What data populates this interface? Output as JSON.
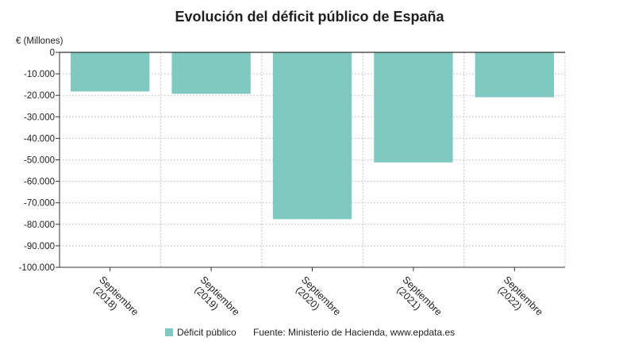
{
  "chart_data": {
    "type": "bar",
    "title": "Evolución del déficit público de España",
    "ylabel": "€ (Millones)",
    "xlabel": "",
    "categories": [
      [
        "Septiembre",
        "(2018)"
      ],
      [
        "Septiembre",
        "(2019)"
      ],
      [
        "Septiembre",
        "(2020)"
      ],
      [
        "Septiembre",
        "(2021)"
      ],
      [
        "Septiembre",
        "(2022)"
      ]
    ],
    "series": [
      {
        "name": "Déficit público",
        "values": [
          -18200,
          -19300,
          -77600,
          -51200,
          -20900
        ]
      }
    ],
    "ylim": [
      -100000,
      0
    ],
    "yticks": [
      0,
      -10000,
      -20000,
      -30000,
      -40000,
      -50000,
      -60000,
      -70000,
      -80000,
      -90000,
      -100000
    ],
    "ytick_labels": [
      "0",
      "-10.000",
      "-20.000",
      "-30.000",
      "-40.000",
      "-50.000",
      "-60.000",
      "-70.000",
      "-80.000",
      "-90.000",
      "-100.000"
    ],
    "grid": true,
    "legend_position": "bottom",
    "source": "Fuente: Ministerio de Hacienda, www.epdata.es",
    "colors": {
      "bar": "#80c9c0",
      "grid": "#c8c8d8",
      "axis": "#333333"
    }
  }
}
